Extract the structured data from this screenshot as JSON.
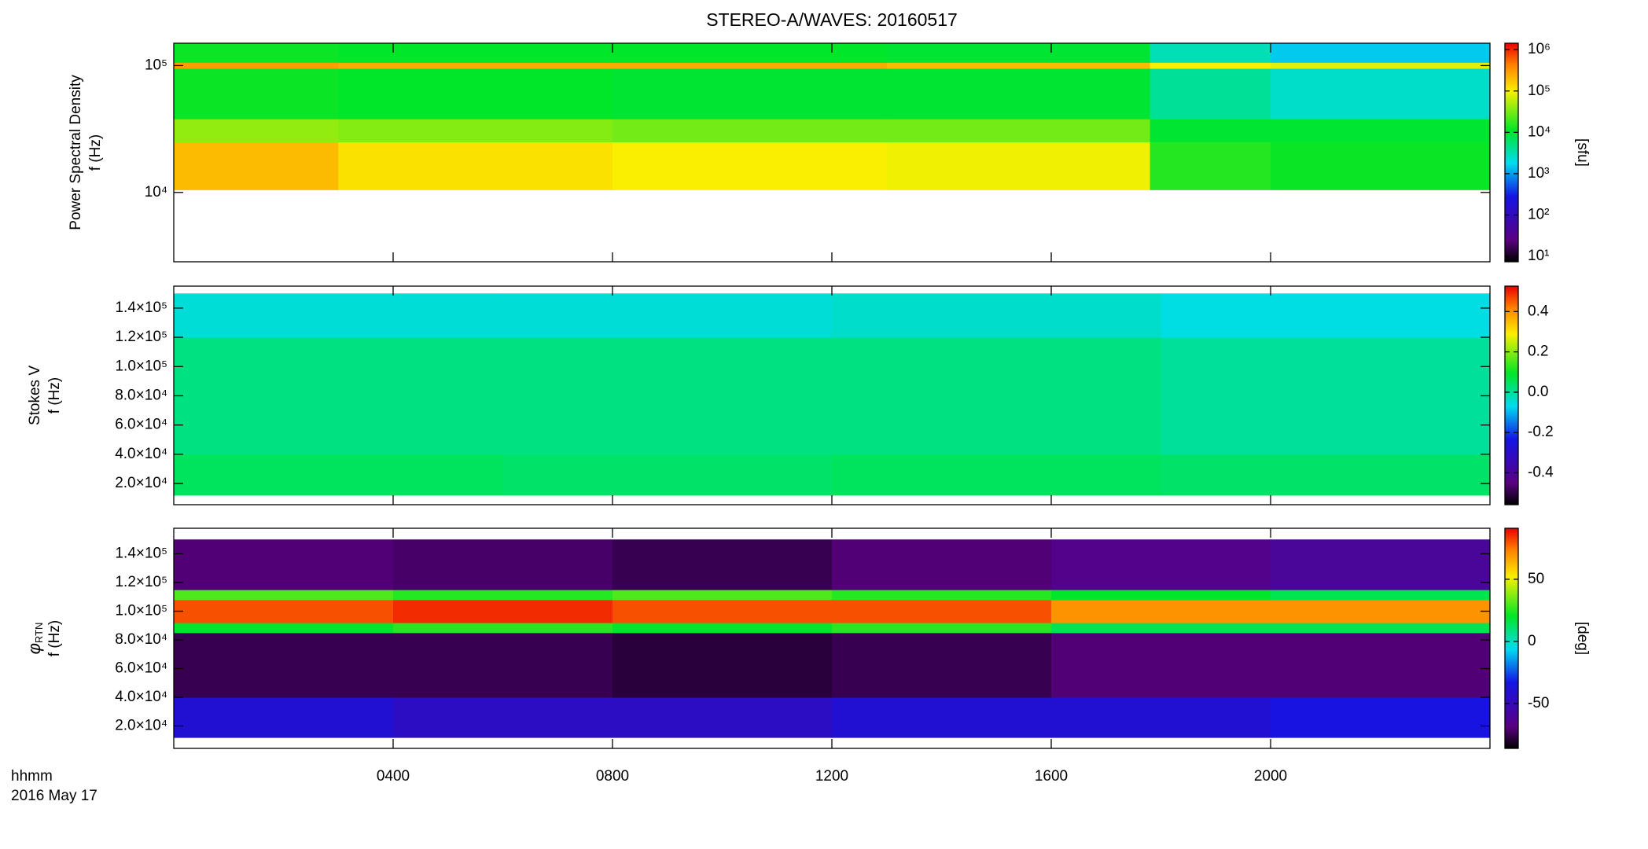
{
  "chart_data": [
    {
      "type": "heatmap",
      "title": "STEREO-A/WAVES: 20160517",
      "quantity": "Power Spectral Density",
      "ylabel": "f (Hz)",
      "zlabel": "[sfu]",
      "colormap": "rainbow",
      "xlim": [
        0,
        24
      ],
      "xticks": [
        4,
        8,
        12,
        16,
        20
      ],
      "ylim": [
        2840,
        150000
      ],
      "ylog": true,
      "yticks": [
        {
          "value": 10000,
          "label": "10⁴"
        },
        {
          "value": 100000,
          "label": "10⁵"
        }
      ],
      "zlim": [
        7.4,
        1430000
      ],
      "zlog": true,
      "zticks": [
        {
          "value": 10,
          "label": "10¹"
        },
        {
          "value": 100,
          "label": "10²"
        },
        {
          "value": 1000,
          "label": "10³"
        },
        {
          "value": 10000,
          "label": "10⁴"
        },
        {
          "value": 100000,
          "label": "10⁵"
        },
        {
          "value": 1000000,
          "label": "10⁶"
        }
      ],
      "x_edges": [
        0,
        3,
        8,
        13,
        17.8,
        20,
        24
      ],
      "y_edges": [
        10500,
        25000,
        38000,
        95000,
        106000,
        150000
      ],
      "z": [
        [
          200000,
          120000,
          100000,
          90000,
          15000,
          12000
        ],
        [
          40000,
          35000,
          30000,
          30000,
          10000,
          10000
        ],
        [
          12000,
          11000,
          10000,
          10000,
          4000,
          2500
        ],
        [
          300000,
          250000,
          250000,
          200000,
          100000,
          80000
        ],
        [
          12000,
          11000,
          11000,
          10000,
          3000,
          1500
        ]
      ]
    },
    {
      "type": "heatmap",
      "quantity": "Stokes V",
      "ylabel": "f (Hz)",
      "colormap": "rainbow",
      "xlim": [
        0,
        24
      ],
      "xticks": [
        4,
        8,
        12,
        16,
        20
      ],
      "ylim": [
        5500,
        155000
      ],
      "yticks": [
        {
          "value": 20000,
          "label": "2.0×10⁴"
        },
        {
          "value": 40000,
          "label": "4.0×10⁴"
        },
        {
          "value": 60000,
          "label": "6.0×10⁴"
        },
        {
          "value": 80000,
          "label": "8.0×10⁴"
        },
        {
          "value": 100000,
          "label": "1.0×10⁵"
        },
        {
          "value": 120000,
          "label": "1.2×10⁵"
        },
        {
          "value": 140000,
          "label": "1.4×10⁵"
        }
      ],
      "zlim": [
        -0.558,
        0.526
      ],
      "zticks": [
        -0.4,
        -0.2,
        {
          "value": 0,
          "label": "0.0"
        },
        0.2,
        0.4
      ],
      "x_edges": [
        0,
        6,
        12,
        18,
        24
      ],
      "y_edges": [
        12000,
        40000,
        120000,
        150000
      ],
      "z": [
        [
          0.05,
          0.04,
          0.05,
          0.04
        ],
        [
          0.02,
          0.02,
          0.02,
          0.0
        ],
        [
          -0.05,
          -0.05,
          -0.04,
          -0.06
        ]
      ]
    },
    {
      "type": "heatmap",
      "quantity": {
        "symbol": "φ",
        "subscript": "RTN"
      },
      "ylabel": "f (Hz)",
      "zlabel": "[deg]",
      "colormap": "rainbow",
      "xlim": [
        0,
        24
      ],
      "xticks": [
        {
          "value": 4,
          "label": "0400"
        },
        {
          "value": 8,
          "label": "0800"
        },
        {
          "value": 12,
          "label": "1200"
        },
        {
          "value": 16,
          "label": "1600"
        },
        {
          "value": 20,
          "label": "2000"
        }
      ],
      "xlabel": [
        "hhmm",
        "2016 May 17"
      ],
      "ylim": [
        4400,
        157800
      ],
      "yticks": [
        {
          "value": 20000,
          "label": "2.0×10⁴"
        },
        {
          "value": 40000,
          "label": "4.0×10⁴"
        },
        {
          "value": 60000,
          "label": "6.0×10⁴"
        },
        {
          "value": 80000,
          "label": "8.0×10⁴"
        },
        {
          "value": 100000,
          "label": "1.0×10⁵"
        },
        {
          "value": 120000,
          "label": "1.2×10⁵"
        },
        {
          "value": 140000,
          "label": "1.4×10⁵"
        }
      ],
      "zlim": [
        -86,
        91
      ],
      "zticks": [
        -50,
        0,
        50
      ],
      "x_edges": [
        0,
        4,
        8,
        12,
        16,
        20,
        24
      ],
      "y_edges": [
        12000,
        40000,
        85000,
        92000,
        108000,
        115000,
        150000
      ],
      "z": [
        [
          -40,
          -45,
          -45,
          -40,
          -40,
          -35
        ],
        [
          -75,
          -75,
          -78,
          -75,
          -70,
          -70
        ],
        [
          20,
          25,
          20,
          25,
          15,
          15
        ],
        [
          80,
          85,
          80,
          80,
          70,
          70
        ],
        [
          30,
          25,
          30,
          25,
          20,
          15
        ],
        [
          -70,
          -72,
          -75,
          -70,
          -65,
          -60
        ]
      ]
    }
  ]
}
